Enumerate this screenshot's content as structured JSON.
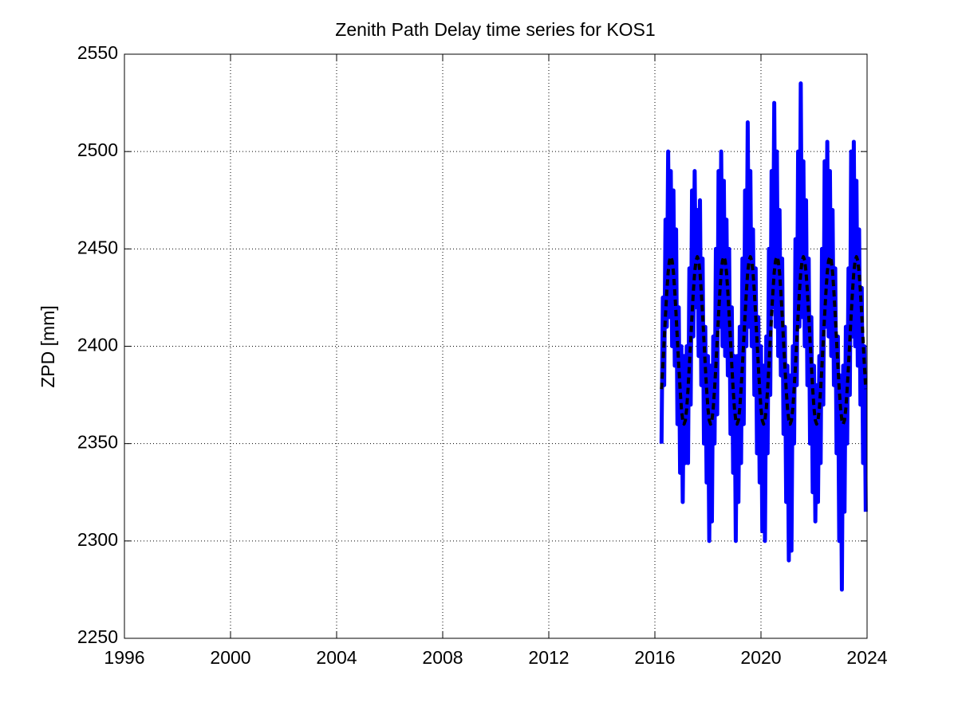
{
  "chart_data": {
    "type": "line",
    "title": "Zenith Path Delay time series for KOS1",
    "y_label": "ZPD [mm]",
    "xlim": [
      1996,
      2024
    ],
    "xticks": [
      1996,
      2000,
      2004,
      2008,
      2012,
      2016,
      2020,
      2024
    ],
    "ylim": [
      2250,
      2550
    ],
    "yticks": [
      2250,
      2300,
      2350,
      2400,
      2450,
      2500,
      2550
    ],
    "grid": true,
    "x": [
      2016.25,
      2016.3,
      2016.35,
      2016.4,
      2016.45,
      2016.5,
      2016.55,
      2016.6,
      2016.65,
      2016.7,
      2016.75,
      2016.8,
      2016.85,
      2016.9,
      2016.95,
      2017,
      2017.05,
      2017.1,
      2017.15,
      2017.2,
      2017.25,
      2017.3,
      2017.35,
      2017.4,
      2017.45,
      2017.5,
      2017.55,
      2017.6,
      2017.65,
      2017.7,
      2017.75,
      2017.8,
      2017.85,
      2017.9,
      2017.95,
      2018,
      2018.05,
      2018.1,
      2018.15,
      2018.2,
      2018.25,
      2018.3,
      2018.35,
      2018.4,
      2018.45,
      2018.5,
      2018.55,
      2018.6,
      2018.65,
      2018.7,
      2018.75,
      2018.8,
      2018.85,
      2018.9,
      2018.95,
      2019,
      2019.05,
      2019.1,
      2019.15,
      2019.2,
      2019.25,
      2019.3,
      2019.35,
      2019.4,
      2019.45,
      2019.5,
      2019.55,
      2019.6,
      2019.65,
      2019.7,
      2019.75,
      2019.8,
      2019.85,
      2019.9,
      2019.95,
      2020,
      2020.05,
      2020.1,
      2020.15,
      2020.2,
      2020.25,
      2020.3,
      2020.35,
      2020.4,
      2020.45,
      2020.5,
      2020.55,
      2020.6,
      2020.65,
      2020.7,
      2020.75,
      2020.8,
      2020.85,
      2020.9,
      2020.95,
      2021,
      2021.05,
      2021.1,
      2021.15,
      2021.2,
      2021.25,
      2021.3,
      2021.35,
      2021.4,
      2021.45,
      2021.5,
      2021.55,
      2021.6,
      2021.65,
      2021.7,
      2021.75,
      2021.8,
      2021.85,
      2021.9,
      2021.95,
      2022,
      2022.05,
      2022.1,
      2022.15,
      2022.2,
      2022.25,
      2022.3,
      2022.35,
      2022.4,
      2022.45,
      2022.5,
      2022.55,
      2022.6,
      2022.65,
      2022.7,
      2022.75,
      2022.8,
      2022.85,
      2022.9,
      2022.95,
      2023,
      2023.05,
      2023.1,
      2023.15,
      2023.2,
      2023.25,
      2023.3,
      2023.35,
      2023.4,
      2023.45,
      2023.5,
      2023.55,
      2023.6,
      2023.65,
      2023.7,
      2023.75,
      2023.8,
      2023.85,
      2023.9,
      2023.95
    ],
    "series": [
      {
        "color": "#0000ff",
        "linestyle": "solid",
        "values": [
          2350,
          2425,
          2380,
          2465,
          2410,
          2500,
          2415,
          2490,
          2400,
          2480,
          2390,
          2460,
          2360,
          2420,
          2335,
          2400,
          2320,
          2395,
          2340,
          2400,
          2340,
          2440,
          2370,
          2480,
          2405,
          2490,
          2420,
          2470,
          2395,
          2475,
          2380,
          2445,
          2350,
          2410,
          2330,
          2395,
          2300,
          2390,
          2310,
          2405,
          2350,
          2450,
          2365,
          2490,
          2410,
          2500,
          2400,
          2485,
          2395,
          2465,
          2385,
          2450,
          2355,
          2420,
          2335,
          2395,
          2300,
          2395,
          2320,
          2410,
          2340,
          2445,
          2360,
          2480,
          2400,
          2515,
          2410,
          2490,
          2400,
          2460,
          2375,
          2440,
          2345,
          2415,
          2330,
          2400,
          2305,
          2390,
          2300,
          2405,
          2345,
          2450,
          2375,
          2490,
          2420,
          2525,
          2410,
          2500,
          2395,
          2470,
          2385,
          2445,
          2355,
          2410,
          2320,
          2390,
          2290,
          2385,
          2295,
          2400,
          2350,
          2455,
          2380,
          2500,
          2410,
          2535,
          2415,
          2495,
          2400,
          2475,
          2380,
          2445,
          2350,
          2415,
          2325,
          2390,
          2310,
          2380,
          2320,
          2395,
          2340,
          2450,
          2370,
          2495,
          2410,
          2505,
          2405,
          2490,
          2395,
          2470,
          2380,
          2440,
          2345,
          2405,
          2300,
          2385,
          2275,
          2390,
          2315,
          2410,
          2350,
          2440,
          2375,
          2500,
          2405,
          2505,
          2400,
          2485,
          2390,
          2460,
          2370,
          2430,
          2340,
          2400,
          2315
        ]
      },
      {
        "color": "#000000",
        "linestyle": "dashed",
        "values": [
          2378,
          2390,
          2403,
          2416,
          2428,
          2438,
          2444,
          2446,
          2444,
          2438,
          2428,
          2416,
          2403,
          2390,
          2378,
          2368,
          2362,
          2360,
          2362,
          2368,
          2378,
          2390,
          2403,
          2416,
          2428,
          2438,
          2444,
          2446,
          2444,
          2438,
          2428,
          2416,
          2403,
          2390,
          2378,
          2368,
          2362,
          2360,
          2362,
          2368,
          2378,
          2390,
          2403,
          2416,
          2428,
          2438,
          2444,
          2446,
          2444,
          2438,
          2428,
          2416,
          2403,
          2390,
          2378,
          2368,
          2362,
          2360,
          2362,
          2368,
          2378,
          2390,
          2403,
          2416,
          2428,
          2438,
          2444,
          2446,
          2444,
          2438,
          2428,
          2416,
          2403,
          2390,
          2378,
          2368,
          2362,
          2360,
          2362,
          2368,
          2378,
          2390,
          2403,
          2416,
          2428,
          2438,
          2444,
          2446,
          2444,
          2438,
          2428,
          2416,
          2403,
          2390,
          2378,
          2368,
          2362,
          2360,
          2362,
          2368,
          2378,
          2390,
          2403,
          2416,
          2428,
          2438,
          2444,
          2446,
          2444,
          2438,
          2428,
          2416,
          2403,
          2390,
          2378,
          2368,
          2362,
          2360,
          2362,
          2368,
          2378,
          2390,
          2403,
          2416,
          2428,
          2438,
          2444,
          2446,
          2444,
          2438,
          2428,
          2416,
          2403,
          2390,
          2378,
          2368,
          2362,
          2360,
          2362,
          2368,
          2378,
          2390,
          2403,
          2416,
          2428,
          2438,
          2444,
          2446,
          2444,
          2438,
          2428,
          2416,
          2403,
          2390,
          2378
        ]
      }
    ]
  }
}
